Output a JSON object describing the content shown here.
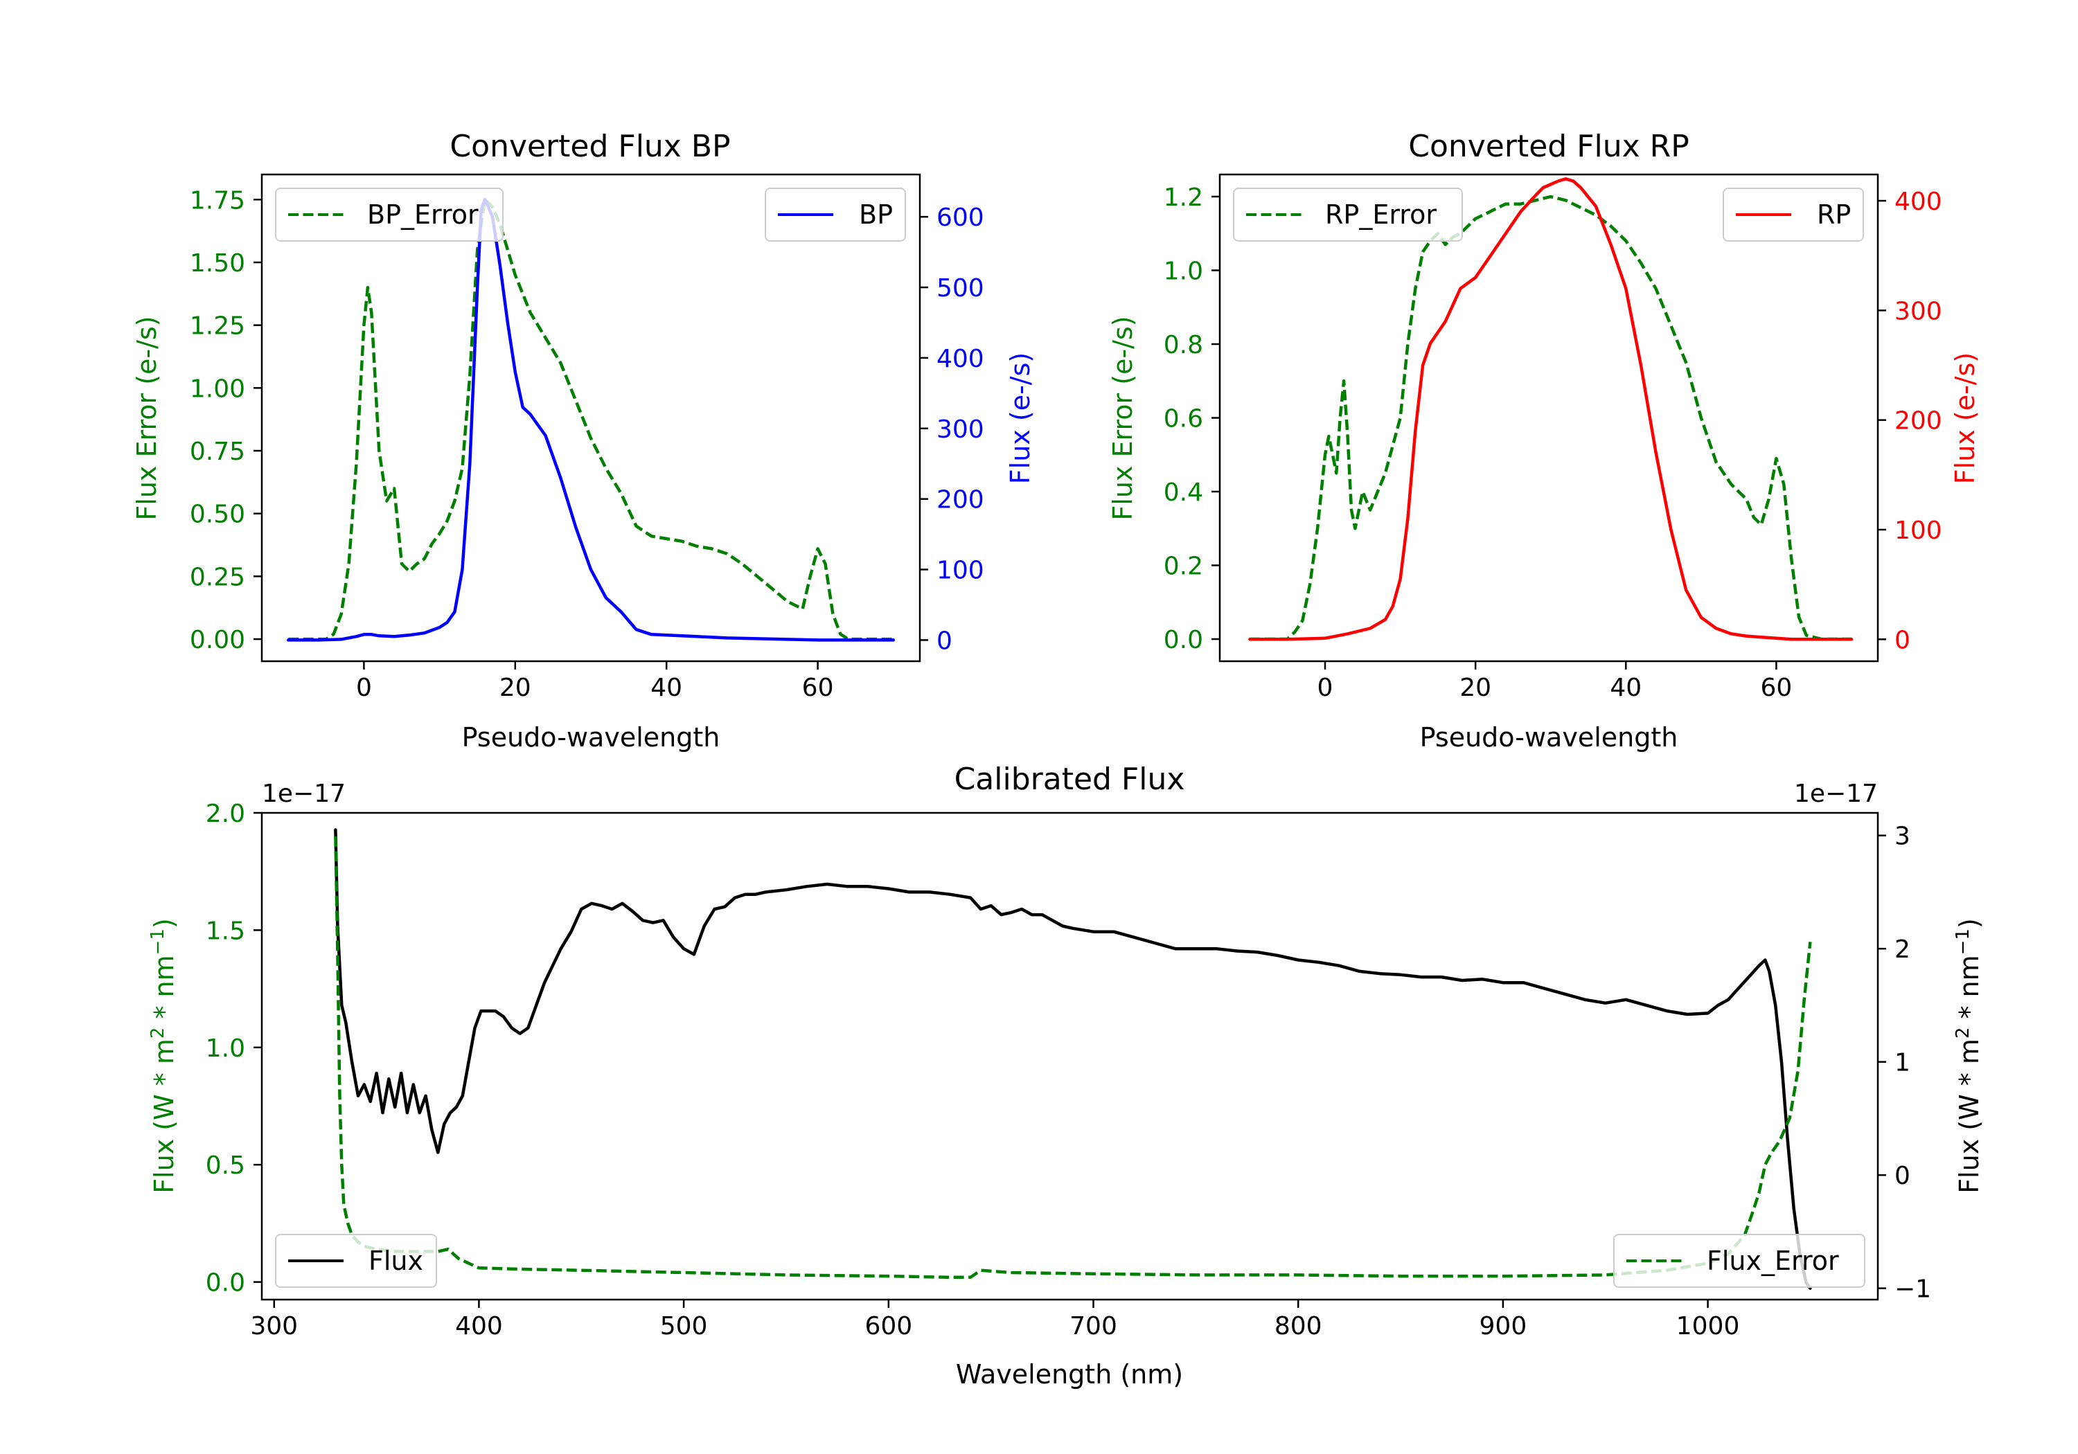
{
  "colors": {
    "green": "#008000",
    "blue": "#0000ff",
    "red": "#ff0000",
    "black": "#000000"
  },
  "chart_data": [
    {
      "id": "bp",
      "type": "line",
      "title": "Converted Flux BP",
      "xlabel": "Pseudo-wavelength",
      "ylabel_left": "Flux Error (e-/s)",
      "ylabel_right": "Flux (e-/s)",
      "xlim": [
        -13.5,
        73.5
      ],
      "ylim_left": [
        -0.088,
        1.85
      ],
      "ylim_right": [
        -30,
        660
      ],
      "xticks": [
        0,
        20,
        40,
        60
      ],
      "xtick_labels": [
        "0",
        "20",
        "40",
        "60"
      ],
      "yticks_left": [
        0,
        0.25,
        0.5,
        0.75,
        1.0,
        1.25,
        1.5,
        1.75
      ],
      "yticks_left_labels": [
        "0.00",
        "0.25",
        "0.50",
        "0.75",
        "1.00",
        "1.25",
        "1.50",
        "1.75"
      ],
      "yticks_right": [
        0,
        100,
        200,
        300,
        400,
        500,
        600
      ],
      "yticks_right_labels": [
        "0",
        "100",
        "200",
        "300",
        "400",
        "500",
        "600"
      ],
      "legend_left": {
        "label": "BP_Error",
        "placement": "upper-left"
      },
      "legend_right": {
        "label": "BP",
        "placement": "upper-right"
      },
      "series": [
        {
          "name": "BP_Error",
          "axis": "left",
          "style": "dashed",
          "color": "#008000",
          "x": [
            -10,
            -5,
            -4,
            -3,
            -2,
            -1,
            0,
            0.5,
            1,
            2,
            3,
            4,
            5,
            6,
            7,
            8,
            9,
            10,
            11,
            12,
            13,
            14,
            15,
            16,
            17,
            18,
            20,
            22,
            24,
            26,
            28,
            30,
            32,
            34,
            36,
            38,
            40,
            42,
            44,
            46,
            48,
            50,
            52,
            54,
            56,
            58,
            59,
            60,
            61,
            62,
            63,
            64,
            66,
            70
          ],
          "y": [
            0,
            0,
            0.02,
            0.1,
            0.3,
            0.7,
            1.25,
            1.4,
            1.3,
            0.75,
            0.55,
            0.6,
            0.3,
            0.27,
            0.3,
            0.32,
            0.38,
            0.42,
            0.47,
            0.55,
            0.68,
            1.05,
            1.55,
            1.75,
            1.72,
            1.65,
            1.45,
            1.3,
            1.2,
            1.1,
            0.95,
            0.8,
            0.68,
            0.58,
            0.45,
            0.41,
            0.4,
            0.39,
            0.37,
            0.36,
            0.34,
            0.3,
            0.25,
            0.2,
            0.15,
            0.12,
            0.25,
            0.36,
            0.3,
            0.1,
            0.02,
            0,
            0,
            0
          ]
        },
        {
          "name": "BP",
          "axis": "right",
          "style": "solid",
          "color": "#0000ff",
          "x": [
            -10,
            -6,
            -3,
            -1,
            0,
            1,
            2,
            4,
            6,
            8,
            10,
            11,
            12,
            13,
            14,
            15,
            15.5,
            16,
            17,
            18,
            19,
            20,
            21,
            22,
            24,
            26,
            28,
            30,
            32,
            34,
            36,
            38,
            40,
            44,
            48,
            52,
            56,
            60,
            64,
            70
          ],
          "y": [
            0,
            0,
            1,
            5,
            8,
            8,
            6,
            5,
            7,
            10,
            18,
            25,
            40,
            100,
            250,
            500,
            610,
            625,
            600,
            530,
            450,
            380,
            330,
            320,
            290,
            230,
            160,
            100,
            60,
            40,
            15,
            8,
            7,
            5,
            3,
            2,
            1,
            0,
            0,
            0
          ]
        }
      ]
    },
    {
      "id": "rp",
      "type": "line",
      "title": "Converted Flux RP",
      "xlabel": "Pseudo-wavelength",
      "ylabel_left": "Flux Error (e-/s)",
      "ylabel_right": "Flux (e-/s)",
      "xlim": [
        -14,
        73.5
      ],
      "ylim_left": [
        -0.06,
        1.26
      ],
      "ylim_right": [
        -20,
        424
      ],
      "xticks": [
        0,
        20,
        40,
        60
      ],
      "xtick_labels": [
        "0",
        "20",
        "40",
        "60"
      ],
      "yticks_left": [
        0,
        0.2,
        0.4,
        0.6,
        0.8,
        1.0,
        1.2
      ],
      "yticks_left_labels": [
        "0.0",
        "0.2",
        "0.4",
        "0.6",
        "0.8",
        "1.0",
        "1.2"
      ],
      "yticks_right": [
        0,
        100,
        200,
        300,
        400
      ],
      "yticks_right_labels": [
        "0",
        "100",
        "200",
        "300",
        "400"
      ],
      "legend_left": {
        "label": "RP_Error",
        "placement": "upper-left"
      },
      "legend_right": {
        "label": "RP",
        "placement": "upper-right"
      },
      "series": [
        {
          "name": "RP_Error",
          "axis": "left",
          "style": "dashed",
          "color": "#008000",
          "x": [
            -10,
            -5,
            -4,
            -3,
            -2,
            -1,
            0,
            0.5,
            1,
            1.5,
            2,
            2.5,
            3,
            3.5,
            4,
            5,
            6,
            8,
            10,
            11,
            12,
            13,
            14,
            15,
            16,
            17,
            18,
            20,
            22,
            24,
            26,
            28,
            30,
            32,
            34,
            36,
            38,
            40,
            42,
            44,
            46,
            48,
            50,
            52,
            54,
            56,
            57,
            58,
            59,
            60,
            61,
            62,
            63,
            64,
            66,
            70
          ],
          "y": [
            0,
            0,
            0.02,
            0.05,
            0.15,
            0.3,
            0.5,
            0.55,
            0.5,
            0.45,
            0.6,
            0.7,
            0.55,
            0.35,
            0.3,
            0.4,
            0.35,
            0.45,
            0.6,
            0.8,
            0.95,
            1.05,
            1.08,
            1.1,
            1.07,
            1.09,
            1.1,
            1.14,
            1.16,
            1.18,
            1.18,
            1.19,
            1.2,
            1.19,
            1.17,
            1.15,
            1.12,
            1.08,
            1.02,
            0.95,
            0.85,
            0.75,
            0.6,
            0.48,
            0.42,
            0.38,
            0.33,
            0.31,
            0.38,
            0.49,
            0.42,
            0.22,
            0.06,
            0.01,
            0,
            0
          ]
        },
        {
          "name": "RP",
          "axis": "right",
          "style": "solid",
          "color": "#ff0000",
          "x": [
            -10,
            -5,
            0,
            3,
            6,
            8,
            9,
            10,
            11,
            12,
            13,
            14,
            15,
            16,
            18,
            20,
            22,
            24,
            26,
            28,
            29,
            30,
            31,
            32,
            33,
            34,
            36,
            38,
            40,
            42,
            44,
            46,
            48,
            50,
            52,
            54,
            56,
            58,
            60,
            62,
            64,
            66,
            70
          ],
          "y": [
            0,
            0,
            1,
            5,
            10,
            18,
            30,
            55,
            110,
            190,
            250,
            270,
            280,
            290,
            320,
            330,
            350,
            370,
            390,
            405,
            412,
            415,
            418,
            420,
            418,
            412,
            395,
            360,
            320,
            250,
            170,
            100,
            45,
            20,
            10,
            5,
            3,
            2,
            1,
            0,
            0,
            0,
            0
          ]
        }
      ]
    },
    {
      "id": "cal",
      "type": "line",
      "title": "Calibrated Flux",
      "xlabel": "Wavelength (nm)",
      "ylabel_left": "Flux (W * m$^2$ * nm$^{-1}$)",
      "ylabel_left_base": "Flux (W * m",
      "ylabel_left_sup1": "2",
      "ylabel_left_mid": " * nm",
      "ylabel_left_sup2": "−1",
      "ylabel_left_end": ")",
      "ylabel_right_base": "Flux (W * m",
      "ylabel_right_sup1": "2",
      "ylabel_right_mid": " * nm",
      "ylabel_right_sup2": "−1",
      "ylabel_right_end": ")",
      "multiplier_left": "1e−17",
      "multiplier_right": "1e−17",
      "xlim": [
        294,
        1083
      ],
      "ylim_left": [
        -0.075,
        2.0
      ],
      "ylim_right": [
        -1.1,
        3.2
      ],
      "xticks": [
        300,
        400,
        500,
        600,
        700,
        800,
        900,
        1000
      ],
      "xtick_labels": [
        "300",
        "400",
        "500",
        "600",
        "700",
        "800",
        "900",
        "1000"
      ],
      "yticks_left": [
        0,
        0.5,
        1.0,
        1.5,
        2.0
      ],
      "yticks_left_labels": [
        "0.0",
        "0.5",
        "1.0",
        "1.5",
        "2.0"
      ],
      "yticks_right": [
        -1,
        0,
        1,
        2,
        3
      ],
      "yticks_right_labels": [
        "−1",
        "0",
        "1",
        "2",
        "3"
      ],
      "legend_left": {
        "label": "Flux",
        "placement": "lower-left"
      },
      "legend_right": {
        "label": "Flux_Error",
        "placement": "lower-right"
      },
      "series": [
        {
          "name": "Flux",
          "axis": "right",
          "style": "solid",
          "color": "#000000",
          "x": [
            330,
            331,
            333,
            335,
            338,
            341,
            344,
            347,
            350,
            353,
            356,
            359,
            362,
            365,
            368,
            371,
            374,
            377,
            380,
            383,
            386,
            389,
            392,
            395,
            398,
            401,
            404,
            408,
            412,
            416,
            420,
            424,
            428,
            432,
            436,
            440,
            445,
            450,
            455,
            460,
            465,
            470,
            475,
            480,
            485,
            490,
            495,
            500,
            505,
            510,
            515,
            520,
            525,
            530,
            535,
            540,
            550,
            560,
            570,
            580,
            590,
            600,
            610,
            620,
            630,
            640,
            645,
            650,
            655,
            660,
            665,
            670,
            675,
            680,
            685,
            690,
            700,
            710,
            720,
            730,
            740,
            750,
            760,
            770,
            780,
            790,
            800,
            810,
            820,
            830,
            840,
            850,
            860,
            870,
            880,
            890,
            900,
            910,
            920,
            930,
            940,
            950,
            960,
            970,
            980,
            990,
            1000,
            1005,
            1010,
            1015,
            1020,
            1025,
            1028,
            1030,
            1033,
            1036,
            1039,
            1042,
            1045,
            1048,
            1050
          ],
          "y": [
            3.05,
            2.2,
            1.5,
            1.35,
            1.0,
            0.7,
            0.8,
            0.65,
            0.9,
            0.55,
            0.85,
            0.6,
            0.9,
            0.55,
            0.8,
            0.55,
            0.7,
            0.4,
            0.2,
            0.45,
            0.55,
            0.6,
            0.7,
            1.0,
            1.3,
            1.45,
            1.45,
            1.45,
            1.4,
            1.3,
            1.25,
            1.3,
            1.5,
            1.7,
            1.85,
            2.0,
            2.15,
            2.35,
            2.4,
            2.38,
            2.35,
            2.4,
            2.33,
            2.25,
            2.23,
            2.25,
            2.1,
            2.0,
            1.95,
            2.2,
            2.35,
            2.37,
            2.45,
            2.48,
            2.48,
            2.5,
            2.52,
            2.55,
            2.57,
            2.55,
            2.55,
            2.53,
            2.5,
            2.5,
            2.48,
            2.45,
            2.35,
            2.38,
            2.3,
            2.32,
            2.35,
            2.3,
            2.3,
            2.25,
            2.2,
            2.18,
            2.15,
            2.15,
            2.1,
            2.05,
            2.0,
            2.0,
            2.0,
            1.98,
            1.97,
            1.94,
            1.9,
            1.88,
            1.85,
            1.8,
            1.78,
            1.77,
            1.75,
            1.75,
            1.72,
            1.73,
            1.7,
            1.7,
            1.65,
            1.6,
            1.55,
            1.52,
            1.55,
            1.5,
            1.45,
            1.42,
            1.43,
            1.5,
            1.55,
            1.65,
            1.75,
            1.85,
            1.9,
            1.8,
            1.5,
            1.0,
            0.3,
            -0.3,
            -0.7,
            -0.95,
            -1.0
          ]
        },
        {
          "name": "Flux_Error",
          "axis": "left",
          "style": "dashed",
          "color": "#008000",
          "x": [
            330,
            331,
            332,
            333,
            334,
            336,
            338,
            341,
            345,
            350,
            360,
            370,
            380,
            385,
            390,
            400,
            420,
            450,
            500,
            550,
            600,
            630,
            640,
            645,
            660,
            700,
            750,
            800,
            850,
            900,
            950,
            980,
            1000,
            1010,
            1018,
            1022,
            1025,
            1028,
            1031,
            1035,
            1040,
            1044,
            1047,
            1050
          ],
          "y": [
            1.9,
            1.4,
            0.8,
            0.5,
            0.33,
            0.25,
            0.2,
            0.17,
            0.15,
            0.14,
            0.13,
            0.13,
            0.13,
            0.14,
            0.1,
            0.06,
            0.055,
            0.05,
            0.04,
            0.03,
            0.025,
            0.02,
            0.02,
            0.05,
            0.04,
            0.035,
            0.03,
            0.03,
            0.025,
            0.025,
            0.03,
            0.05,
            0.08,
            0.12,
            0.2,
            0.3,
            0.38,
            0.5,
            0.55,
            0.6,
            0.7,
            0.9,
            1.2,
            1.45
          ]
        }
      ]
    }
  ]
}
